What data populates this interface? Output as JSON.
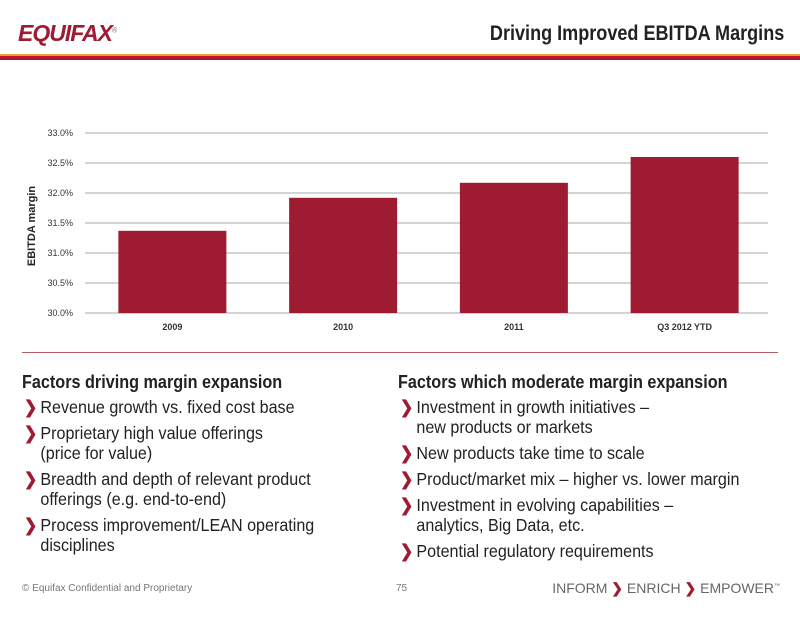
{
  "header": {
    "logo": "EQUIFAX",
    "title": "Driving Improved EBITDA Margins"
  },
  "chart_data": {
    "type": "bar",
    "title": "",
    "xlabel": "",
    "ylabel": "EBITDA margin",
    "categories": [
      "2009",
      "2010",
      "2011",
      "Q3 2012 YTD"
    ],
    "values": [
      31.37,
      31.92,
      32.17,
      32.6
    ],
    "ylim": [
      30.0,
      33.0
    ],
    "yticks": [
      "30.0%",
      "30.5%",
      "31.0%",
      "31.5%",
      "32.0%",
      "32.5%",
      "33.0%"
    ],
    "grid": true,
    "bar_color": "#9e1b32"
  },
  "left": {
    "heading": "Factors driving margin expansion",
    "items": [
      [
        "Revenue growth vs. fixed cost base"
      ],
      [
        "Proprietary high value offerings",
        "(price for value)"
      ],
      [
        "Breadth and depth of relevant product",
        "offerings (e.g. end-to-end)"
      ],
      [
        "Process improvement/LEAN operating",
        "disciplines"
      ]
    ]
  },
  "right": {
    "heading": "Factors which moderate margin expansion",
    "items": [
      [
        "Investment in growth initiatives –",
        "new products or markets"
      ],
      [
        "New products take time to scale"
      ],
      [
        "Product/market mix – higher vs. lower margin"
      ],
      [
        "Investment in evolving capabilities –",
        "analytics, Big Data, etc."
      ],
      [
        "Potential regulatory requirements"
      ]
    ]
  },
  "footer": {
    "confidential": "© Equifax Confidential and Proprietary",
    "page": "75",
    "tagline": [
      "INFORM",
      "ENRICH",
      "EMPOWER"
    ],
    "tm": "™"
  }
}
